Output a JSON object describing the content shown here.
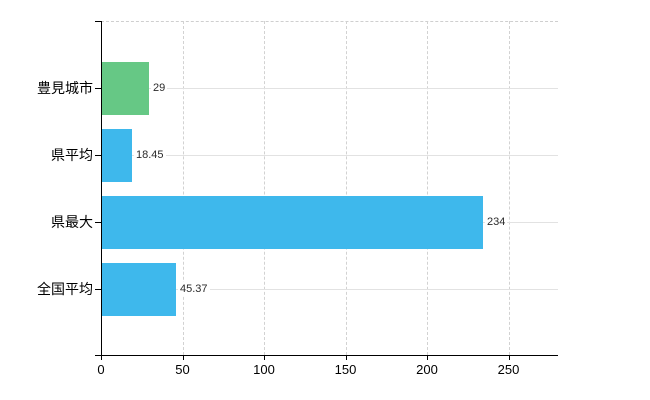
{
  "chart_data": {
    "type": "bar",
    "orientation": "horizontal",
    "title": "",
    "xlabel": "",
    "ylabel": "",
    "categories": [
      "豊見城市",
      "県平均",
      "県最大",
      "全国平均"
    ],
    "values": [
      29,
      18.45,
      234,
      45.37
    ],
    "value_labels": [
      "29",
      "18.45",
      "234",
      "45.37"
    ],
    "bar_colors": [
      "#66c885",
      "#3eb8ec",
      "#3eb8ec",
      "#3eb8ec"
    ],
    "x_ticks": [
      0,
      50,
      100,
      150,
      200,
      250
    ],
    "x_tick_labels": [
      "0",
      "50",
      "100",
      "150",
      "200",
      "250"
    ],
    "xlim": [
      0,
      280
    ],
    "legend": "none",
    "grid": {
      "vertical": "dashed",
      "horizontal": "solid-at-category-centers",
      "top_border": "dashed"
    },
    "colors": {
      "axis": "#000000",
      "grid_vertical": "#d2d2d2",
      "grid_horizontal": "#e2e2e2",
      "value_label_text": "#2b2b2b",
      "background": "#ffffff"
    }
  }
}
